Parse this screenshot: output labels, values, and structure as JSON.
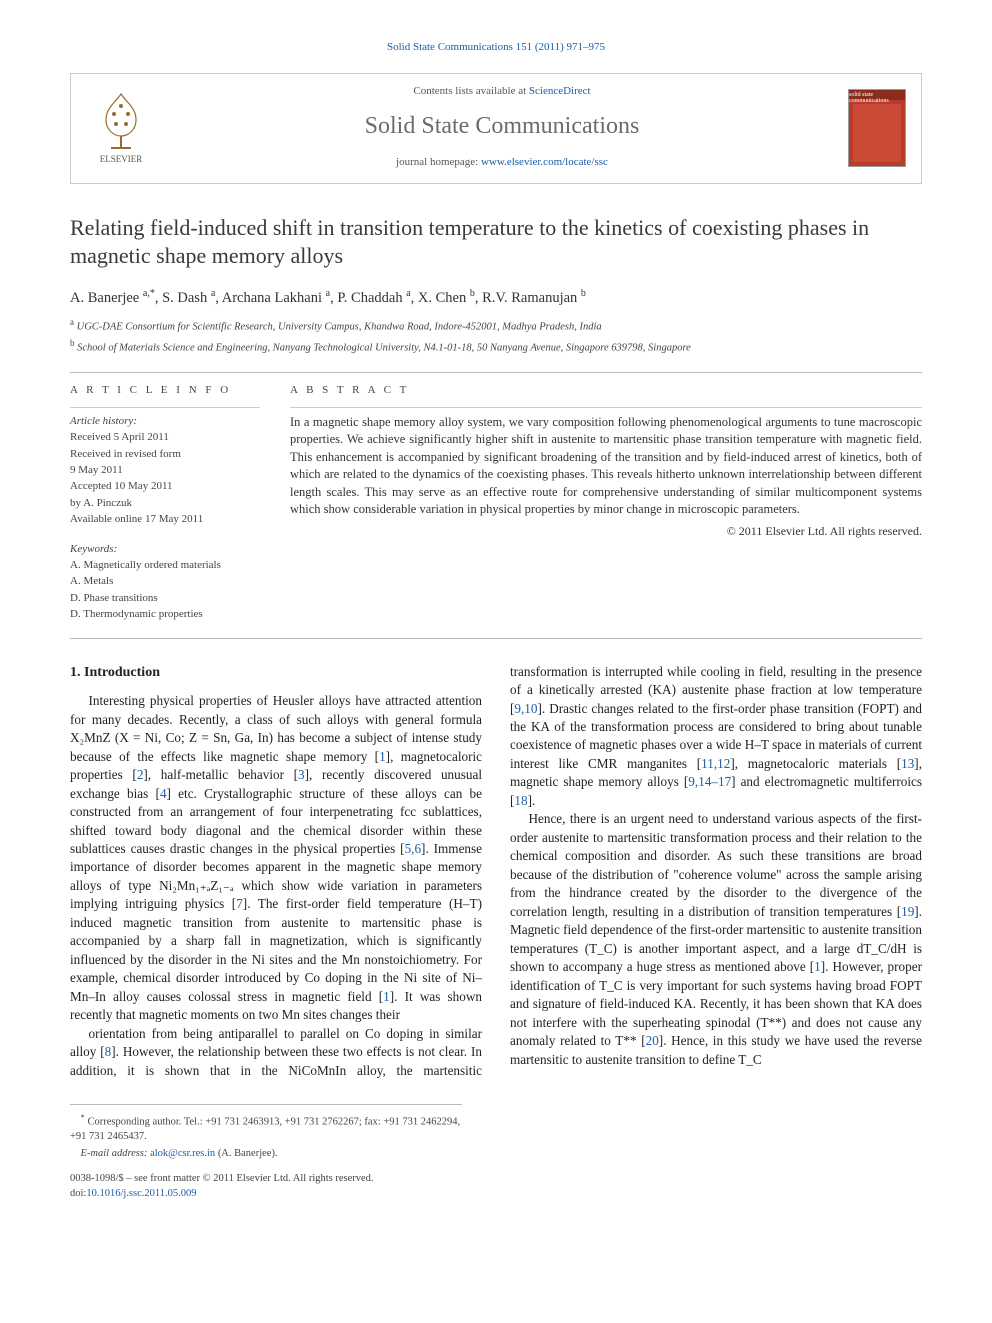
{
  "colors": {
    "link": "#1a5da8",
    "text": "#333333",
    "muted": "#6b6b6b",
    "rule": "#bbbbbb",
    "cover_bg": "#b83c2a"
  },
  "header": {
    "citation": "Solid State Communications 151 (2011) 971–975",
    "contents_prefix": "Contents lists available at ",
    "contents_link": "ScienceDirect",
    "journal_title": "Solid State Communications",
    "homepage_prefix": "journal homepage: ",
    "homepage_link": "www.elsevier.com/locate/ssc",
    "publisher": "ELSEVIER",
    "cover_label": "solid state communications"
  },
  "article": {
    "title": "Relating field-induced shift in transition temperature to the kinetics of coexisting phases in magnetic shape memory alloys",
    "authors_html": "A. Banerjee <sup>a,*</sup>, S. Dash <sup>a</sup>, Archana Lakhani <sup>a</sup>, P. Chaddah <sup>a</sup>, X. Chen <sup>b</sup>, R.V. Ramanujan <sup>b</sup>",
    "affiliations": [
      {
        "sup": "a",
        "text": "UGC-DAE Consortium for Scientific Research, University Campus, Khandwa Road, Indore-452001, Madhya Pradesh, India"
      },
      {
        "sup": "b",
        "text": "School of Materials Science and Engineering, Nanyang Technological University, N4.1-01-18, 50 Nanyang Avenue, Singapore 639798, Singapore"
      }
    ]
  },
  "info": {
    "heading": "A R T I C L E   I N F O",
    "history_label": "Article history:",
    "history": [
      "Received 5 April 2011",
      "Received in revised form",
      "9 May 2011",
      "Accepted 10 May 2011",
      "by A. Pinczuk",
      "Available online 17 May 2011"
    ],
    "keywords_label": "Keywords:",
    "keywords": [
      "A. Magnetically ordered materials",
      "A. Metals",
      "D. Phase transitions",
      "D. Thermodynamic properties"
    ]
  },
  "abstract": {
    "heading": "A B S T R A C T",
    "body": "In a magnetic shape memory alloy system, we vary composition following phenomenological arguments to tune macroscopic properties. We achieve significantly higher shift in austenite to martensitic phase transition temperature with magnetic field. This enhancement is accompanied by significant broadening of the transition and by field-induced arrest of kinetics, both of which are related to the dynamics of the coexisting phases. This reveals hitherto unknown interrelationship between different length scales. This may serve as an effective route for comprehensive understanding of similar multicomponent systems which show considerable variation in physical properties by minor change in microscopic parameters.",
    "copyright": "© 2011 Elsevier Ltd. All rights reserved."
  },
  "section1": {
    "heading": "1. Introduction",
    "p1": "Interesting physical properties of Heusler alloys have attracted attention for many decades. Recently, a class of such alloys with general formula X₂MnZ (X = Ni, Co; Z = Sn, Ga, In) has become a subject of intense study because of the effects like magnetic shape memory [1], magnetocaloric properties [2], half-metallic behavior [3], recently discovered unusual exchange bias [4] etc. Crystallographic structure of these alloys can be constructed from an arrangement of four interpenetrating fcc sublattices, shifted toward body diagonal and the chemical disorder within these sublattices causes drastic changes in the physical properties [5,6]. Immense importance of disorder becomes apparent in the magnetic shape memory alloys of type Ni₂Mn₁₊ₐZ₁₋ₐ which show wide variation in parameters implying intriguing physics [7]. The first-order field temperature (H–T) induced magnetic transition from austenite to martensitic phase is accompanied by a sharp fall in magnetization, which is significantly influenced by the disorder in the Ni sites and the Mn nonstoichiometry. For example, chemical disorder introduced by Co doping in the Ni site of Ni–Mn–In alloy causes colossal stress in magnetic field [1]. It was shown recently that magnetic moments on two Mn sites changes their",
    "p2": "orientation from being antiparallel to parallel on Co doping in similar alloy [8]. However, the relationship between these two effects is not clear. In addition, it is shown that in the NiCoMnIn alloy, the martensitic transformation is interrupted while cooling in field, resulting in the presence of a kinetically arrested (KA) austenite phase fraction at low temperature [9,10]. Drastic changes related to the first-order phase transition (FOPT) and the KA of the transformation process are considered to bring about tunable coexistence of magnetic phases over a wide H–T space in materials of current interest like CMR manganites [11,12], magnetocaloric materials [13], magnetic shape memory alloys [9,14–17] and electromagnetic multiferroics [18].",
    "p3": "Hence, there is an urgent need to understand various aspects of the first-order austenite to martensitic transformation process and their relation to the chemical composition and disorder. As such these transitions are broad because of the distribution of \"coherence volume\" across the sample arising from the hindrance created by the disorder to the divergence of the correlation length, resulting in a distribution of transition temperatures [19]. Magnetic field dependence of the first-order martensitic to austenite transition temperatures (T_C) is another important aspect, and a large dT_C/dH is shown to accompany a huge stress as mentioned above [1]. However, proper identification of T_C is very important for such systems having broad FOPT and signature of field-induced KA. Recently, it has been shown that KA does not interfere with the superheating spinodal (T**) and does not cause any anomaly related to T** [20]. Hence, in this study we have used the reverse martensitic to austenite transition to define T_C"
  },
  "footnotes": {
    "corr": "Corresponding author. Tel.: +91 731 2463913, +91 731 2762267; fax: +91 731 2462294, +91 731 2465437.",
    "email_label": "E-mail address:",
    "email": "alok@csr.res.in",
    "email_who": "(A. Banerjee)."
  },
  "footer": {
    "left1": "0038-1098/$ – see front matter © 2011 Elsevier Ltd. All rights reserved.",
    "left2_label": "doi:",
    "left2_link": "10.1016/j.ssc.2011.05.009"
  }
}
